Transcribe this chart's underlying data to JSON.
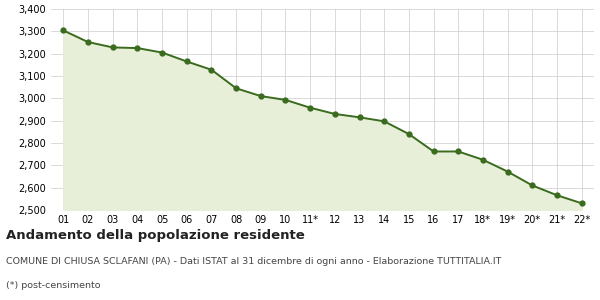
{
  "x_labels": [
    "01",
    "02",
    "03",
    "04",
    "05",
    "06",
    "07",
    "08",
    "09",
    "10",
    "11*",
    "12",
    "13",
    "14",
    "15",
    "16",
    "17",
    "18*",
    "19*",
    "20*",
    "21*",
    "22*"
  ],
  "y_values": [
    3304,
    3252,
    3228,
    3225,
    3205,
    3165,
    3128,
    3045,
    3010,
    2993,
    2958,
    2930,
    2915,
    2897,
    2840,
    2762,
    2762,
    2725,
    2672,
    2610,
    2566,
    2530
  ],
  "line_color": "#3a6b1e",
  "fill_color": "#e8efd8",
  "marker_color": "#3a6b1e",
  "bg_color": "#ffffff",
  "grid_color": "#cccccc",
  "ylim_min": 2500,
  "ylim_max": 3400,
  "ytick_step": 100,
  "title": "Andamento della popolazione residente",
  "subtitle": "COMUNE DI CHIUSA SCLAFANI (PA) - Dati ISTAT al 31 dicembre di ogni anno - Elaborazione TUTTITALIA.IT",
  "footnote": "(*) post-censimento",
  "title_fontsize": 9.5,
  "subtitle_fontsize": 6.8,
  "footnote_fontsize": 6.8,
  "tick_fontsize": 7,
  "line_width": 1.4,
  "marker_size": 3.5
}
